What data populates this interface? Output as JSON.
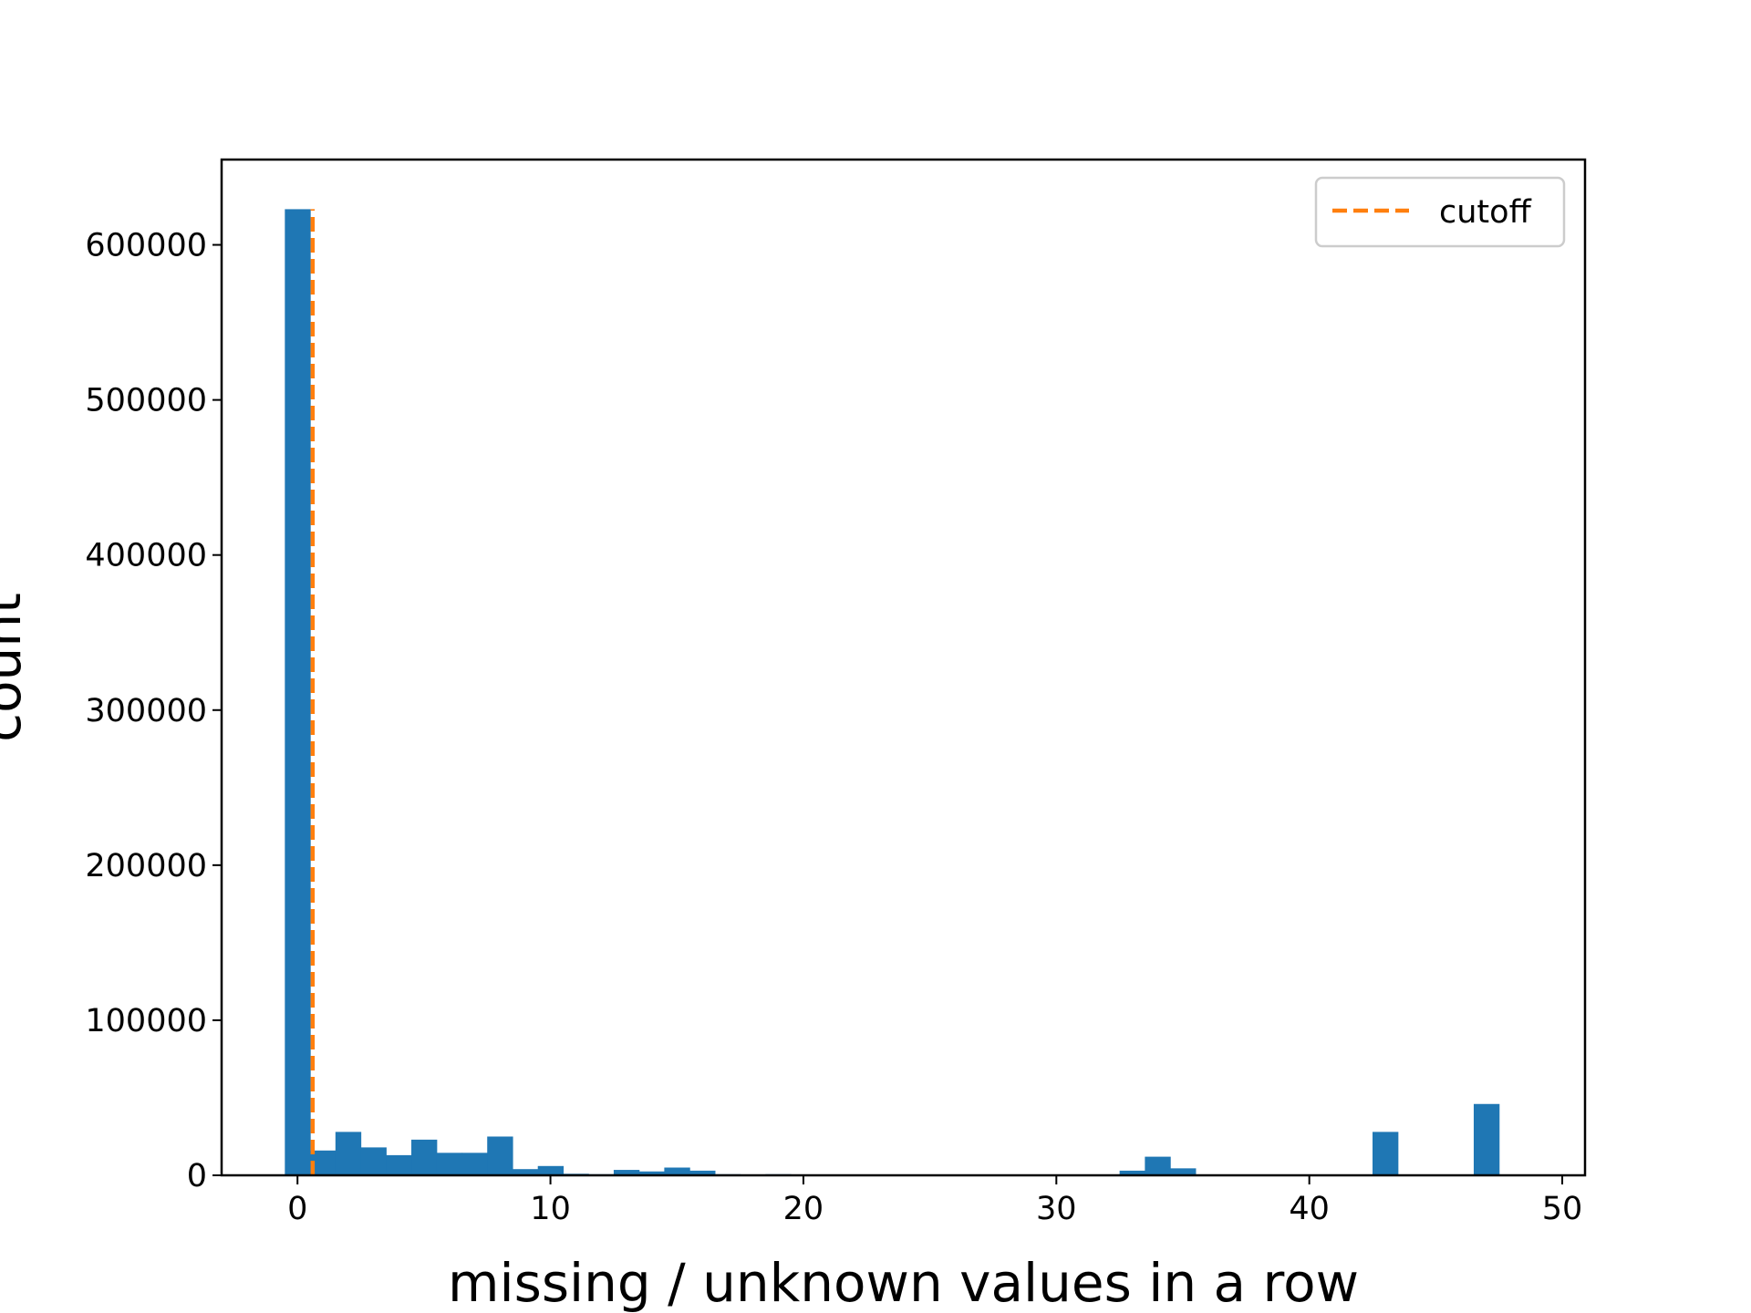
{
  "chart_data": {
    "type": "bar",
    "title": "",
    "xlabel": "missing / unknown values in a row",
    "ylabel": "count",
    "xlim": [
      -3,
      50.9
    ],
    "ylim": [
      0,
      655000
    ],
    "bin_width": 1,
    "xticks": [
      0,
      10,
      20,
      30,
      40,
      50
    ],
    "yticks": [
      0,
      100000,
      200000,
      300000,
      400000,
      500000,
      600000
    ],
    "bars": [
      {
        "x": 0,
        "value": 623000
      },
      {
        "x": 1,
        "value": 16000
      },
      {
        "x": 2,
        "value": 28000
      },
      {
        "x": 3,
        "value": 18000
      },
      {
        "x": 4,
        "value": 13000
      },
      {
        "x": 5,
        "value": 23000
      },
      {
        "x": 6,
        "value": 14500
      },
      {
        "x": 7,
        "value": 14500
      },
      {
        "x": 8,
        "value": 25000
      },
      {
        "x": 9,
        "value": 4000
      },
      {
        "x": 10,
        "value": 6000
      },
      {
        "x": 11,
        "value": 1000
      },
      {
        "x": 12,
        "value": 700
      },
      {
        "x": 13,
        "value": 3500
      },
      {
        "x": 14,
        "value": 2500
      },
      {
        "x": 15,
        "value": 5000
      },
      {
        "x": 16,
        "value": 3000
      },
      {
        "x": 17,
        "value": 700
      },
      {
        "x": 19,
        "value": 700
      },
      {
        "x": 33,
        "value": 3000
      },
      {
        "x": 34,
        "value": 12000
      },
      {
        "x": 35,
        "value": 4500
      },
      {
        "x": 43,
        "value": 28000
      },
      {
        "x": 47,
        "value": 46000
      }
    ],
    "series": [
      {
        "name": "cutoff",
        "type": "vline",
        "x": 0.6,
        "style": "dashed"
      }
    ],
    "legend": {
      "placement": "top-right",
      "entries": [
        "cutoff"
      ]
    },
    "grid": false,
    "colors": {
      "bars": "#1f77b4",
      "cutoff": "#ff7f0e",
      "axes": "#000000"
    }
  }
}
